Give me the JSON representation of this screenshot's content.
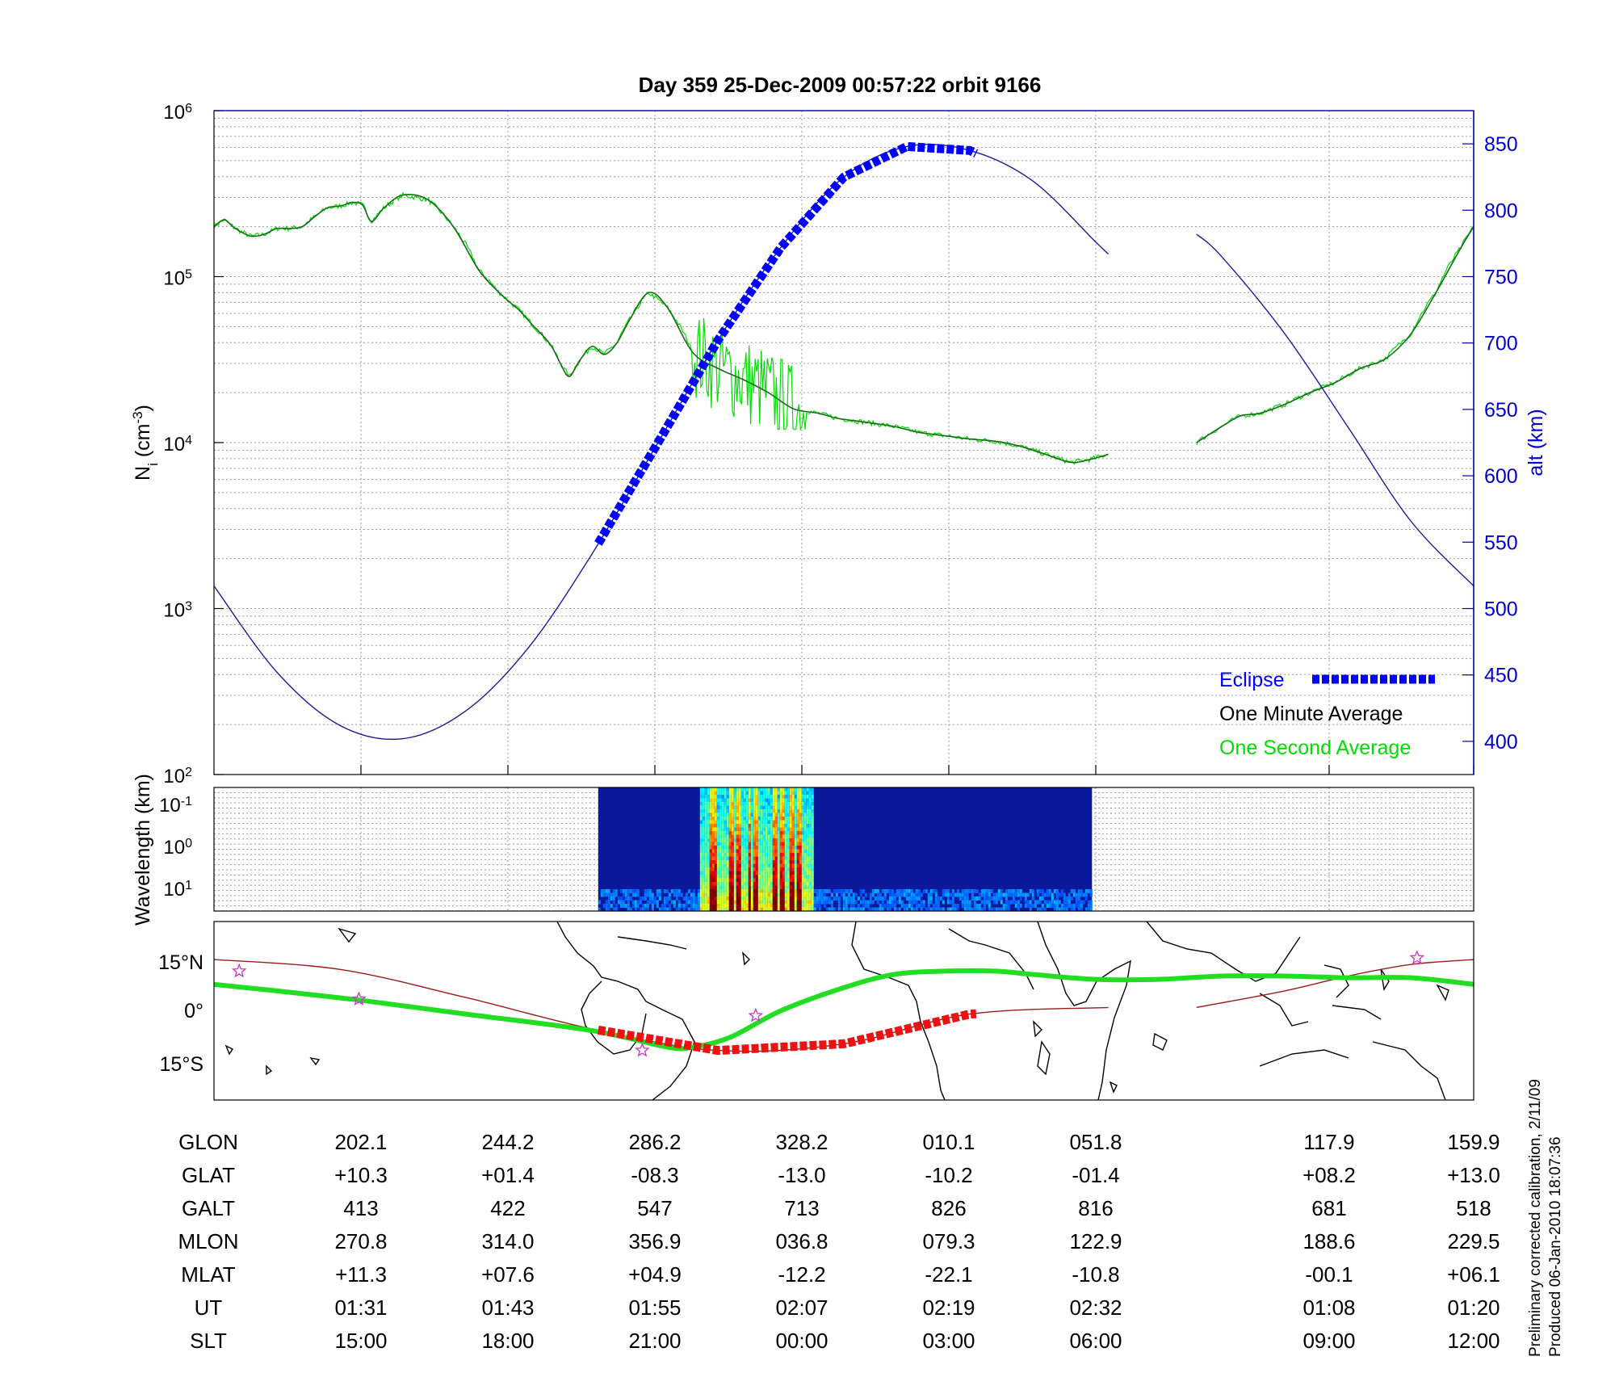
{
  "title": "Day 359  25-Dec-2009 00:57:22   orbit 9166",
  "footer": {
    "line1": "Preliminary corrected calibration, 2/11/09",
    "line2": "Produced 06-Jan-2010 18:07:36"
  },
  "colors": {
    "eclipse": "#0000ff",
    "minute_avg": "#000000",
    "second_avg": "#00dd00",
    "altitude": "#1c1c9c",
    "track": "#9c1c1c",
    "ground_track": "#22dd22",
    "eclipse_track": "#ee1111",
    "star": "#cc33cc"
  },
  "chart_data": [
    {
      "type": "line",
      "panel": "density",
      "ylabel": "N_i (cm^-3)",
      "ylabel_base": "N",
      "ylabel_sub": "i",
      "ylabel_unit_pre": " (cm",
      "ylabel_unit_sup": "-3",
      "ylabel_unit_post": ")",
      "y_scale": "log",
      "ylim": [
        100,
        1000000
      ],
      "y_ticks": [
        {
          "value": 100,
          "base": "10",
          "exp": "2"
        },
        {
          "value": 1000,
          "base": "10",
          "exp": "3"
        },
        {
          "value": 10000,
          "base": "10",
          "exp": "4"
        },
        {
          "value": 100000,
          "base": "10",
          "exp": "5"
        },
        {
          "value": 1000000,
          "base": "10",
          "exp": "6"
        }
      ],
      "y2label": "alt (km)",
      "y2lim": [
        375,
        875
      ],
      "y2_ticks": [
        "400",
        "450",
        "500",
        "550",
        "600",
        "650",
        "700",
        "750",
        "800",
        "850"
      ],
      "x_ticks_ut": [
        "01:31",
        "01:43",
        "01:55",
        "02:07",
        "02:19",
        "02:32",
        "01:08",
        "01:20"
      ],
      "legend_location": "bottom-right",
      "legend": [
        {
          "label": "Eclipse",
          "style": "eclipse"
        },
        {
          "label": "One Minute Average",
          "style": "minute"
        },
        {
          "label": "One Second Average",
          "style": "second"
        }
      ],
      "series": [
        {
          "name": "One Minute Average",
          "segment_1": {
            "x": [
              0.0,
              0.8,
              1.5,
              2.2,
              3.0,
              4.0,
              5.0,
              6.0,
              7.0,
              8.0,
              9.0,
              9.8,
              10.3,
              11.0,
              11.8,
              12.5,
              13.5,
              15.0,
              17.0,
              19.0,
              21.0,
              22.5,
              23.5,
              24.3,
              25.2,
              26.0,
              26.8,
              27.5,
              28.2,
              29.0,
              30.0,
              31.0,
              32.0,
              33.0,
              34.5,
              36.0,
              38.0,
              40.0,
              42.0,
              44.0,
              46.0,
              48.0,
              49.5,
              51.0,
              52.5,
              54.0,
              56.0,
              58.0,
              60.0,
              62.0,
              64.0,
              66.0,
              68.0,
              69.5,
              71.0
            ],
            "y": [
              200000,
              220000,
              200000,
              185000,
              175000,
              180000,
              195000,
              195000,
              200000,
              230000,
              260000,
              265000,
              270000,
              280000,
              270000,
              215000,
              260000,
              310000,
              290000,
              200000,
              110000,
              82000,
              70000,
              62000,
              52000,
              45000,
              38000,
              30000,
              25000,
              31000,
              38000,
              34000,
              40000,
              55000,
              80000,
              65000,
              35000,
              28000,
              24000,
              20000,
              16000,
              15000,
              14000,
              13500,
              13000,
              12500,
              11500,
              11000,
              10500,
              10200,
              9500,
              8500,
              7600,
              7900,
              8500
            ]
          },
          "segment_2": {
            "x": [
              78.0,
              80.0,
              81.5,
              83.0,
              85.0,
              87.0,
              89.0,
              91.0,
              93.0,
              95.0,
              97.0,
              99.0,
              100.0
            ],
            "y": [
              10000,
              12500,
              14500,
              15000,
              17000,
              20000,
              23000,
              28000,
              32000,
              45000,
              80000,
              150000,
              200000
            ]
          }
        },
        {
          "name": "One Second Average",
          "noisy_band_x": [
            38.0,
            47.0
          ],
          "y_range": [
            12000,
            90000
          ]
        },
        {
          "name": "Altitude",
          "axis": "right",
          "unit": "km",
          "segment_1": {
            "x": [
              0,
              5,
              10,
              15,
              20,
              25,
              30,
              35,
              40,
              45,
              50,
              55,
              60,
              65,
              70,
              71
            ],
            "y": [
              517,
              452,
              412,
              402,
              423,
              471,
              541,
              621,
              702,
              772,
              825,
              848,
              845,
              822,
              776,
              767
            ]
          },
          "segment_2": {
            "x": [
              78,
              80,
              85,
              90,
              95,
              100
            ],
            "y": [
              782,
              765,
              707,
              637,
              566,
              517
            ]
          }
        },
        {
          "name": "Eclipse",
          "x_range": [
            30.5,
            60.5
          ]
        }
      ]
    },
    {
      "type": "heatmap",
      "panel": "spectrogram",
      "ylabel": "Wavelength (km)",
      "y_ticks": [
        {
          "base": "10",
          "exp": "-1"
        },
        {
          "base": "10",
          "exp": "0"
        },
        {
          "base": "10",
          "exp": "1"
        }
      ],
      "data_x_range": [
        30.5,
        69.7
      ],
      "peak_x_range": [
        38.5,
        47.5
      ]
    },
    {
      "type": "line",
      "panel": "map",
      "ylabels": [
        "15°N",
        "0°",
        "15°S"
      ],
      "ylim_deg": [
        -28,
        26
      ],
      "series": [
        {
          "name": "Orbit Track",
          "segment_1": {
            "x": [
              0,
              10,
              20,
              30,
              40,
              50,
              60,
              71
            ],
            "y": [
              14.5,
              11.5,
              3.0,
              -6.5,
              -13.0,
              -11.0,
              -2.0,
              0.0
            ]
          },
          "segment_2": {
            "x": [
              78,
              85,
              90,
              95,
              100
            ],
            "y": [
              0.0,
              5.0,
              9.5,
              13.0,
              14.5
            ]
          }
        },
        {
          "name": "Magnetic Footprint",
          "x": [
            0,
            5,
            12,
            20,
            30,
            36,
            38,
            41,
            45,
            50,
            54,
            58,
            62,
            65,
            70,
            75,
            80,
            85,
            90,
            95,
            100
          ],
          "y": [
            7.0,
            5.0,
            2.0,
            -2.0,
            -7.0,
            -12.0,
            -12.0,
            -9.0,
            -1.0,
            6.0,
            10.0,
            11.0,
            11.0,
            10.0,
            8.5,
            8.5,
            9.5,
            9.5,
            9.0,
            9.0,
            7.0
          ]
        },
        {
          "name": "Eclipse Track",
          "x_range": [
            30.5,
            60.5
          ]
        },
        {
          "name": "Stars",
          "x": [
            2,
            11.5,
            34,
            43,
            95.5
          ],
          "y": [
            11.0,
            2.5,
            -13.0,
            -2.5,
            15.0
          ]
        }
      ],
      "coastlines": "world map outline"
    },
    {
      "type": "table",
      "panel": "ephemeris",
      "rows": [
        {
          "label": "GLON",
          "values": [
            "202.1",
            "244.2",
            "286.2",
            "328.2",
            "010.1",
            "051.8",
            "117.9",
            "159.9"
          ]
        },
        {
          "label": "GLAT",
          "values": [
            "+10.3",
            "+01.4",
            "-08.3",
            "-13.0",
            "-10.2",
            "-01.4",
            "+08.2",
            "+13.0"
          ]
        },
        {
          "label": "GALT",
          "values": [
            "413",
            "422",
            "547",
            "713",
            "826",
            "816",
            "681",
            "518"
          ]
        },
        {
          "label": "MLON",
          "values": [
            "270.8",
            "314.0",
            "356.9",
            "036.8",
            "079.3",
            "122.9",
            "188.6",
            "229.5"
          ]
        },
        {
          "label": "MLAT",
          "values": [
            "+11.3",
            "+07.6",
            "+04.9",
            "-12.2",
            "-22.1",
            "-10.8",
            "-00.1",
            "+06.1"
          ]
        },
        {
          "label": "UT",
          "values": [
            "01:31",
            "01:43",
            "01:55",
            "02:07",
            "02:19",
            "02:32",
            "01:08",
            "01:20"
          ]
        },
        {
          "label": "SLT",
          "values": [
            "15:00",
            "18:00",
            "21:00",
            "00:00",
            "03:00",
            "06:00",
            "09:00",
            "12:00"
          ]
        }
      ]
    }
  ]
}
